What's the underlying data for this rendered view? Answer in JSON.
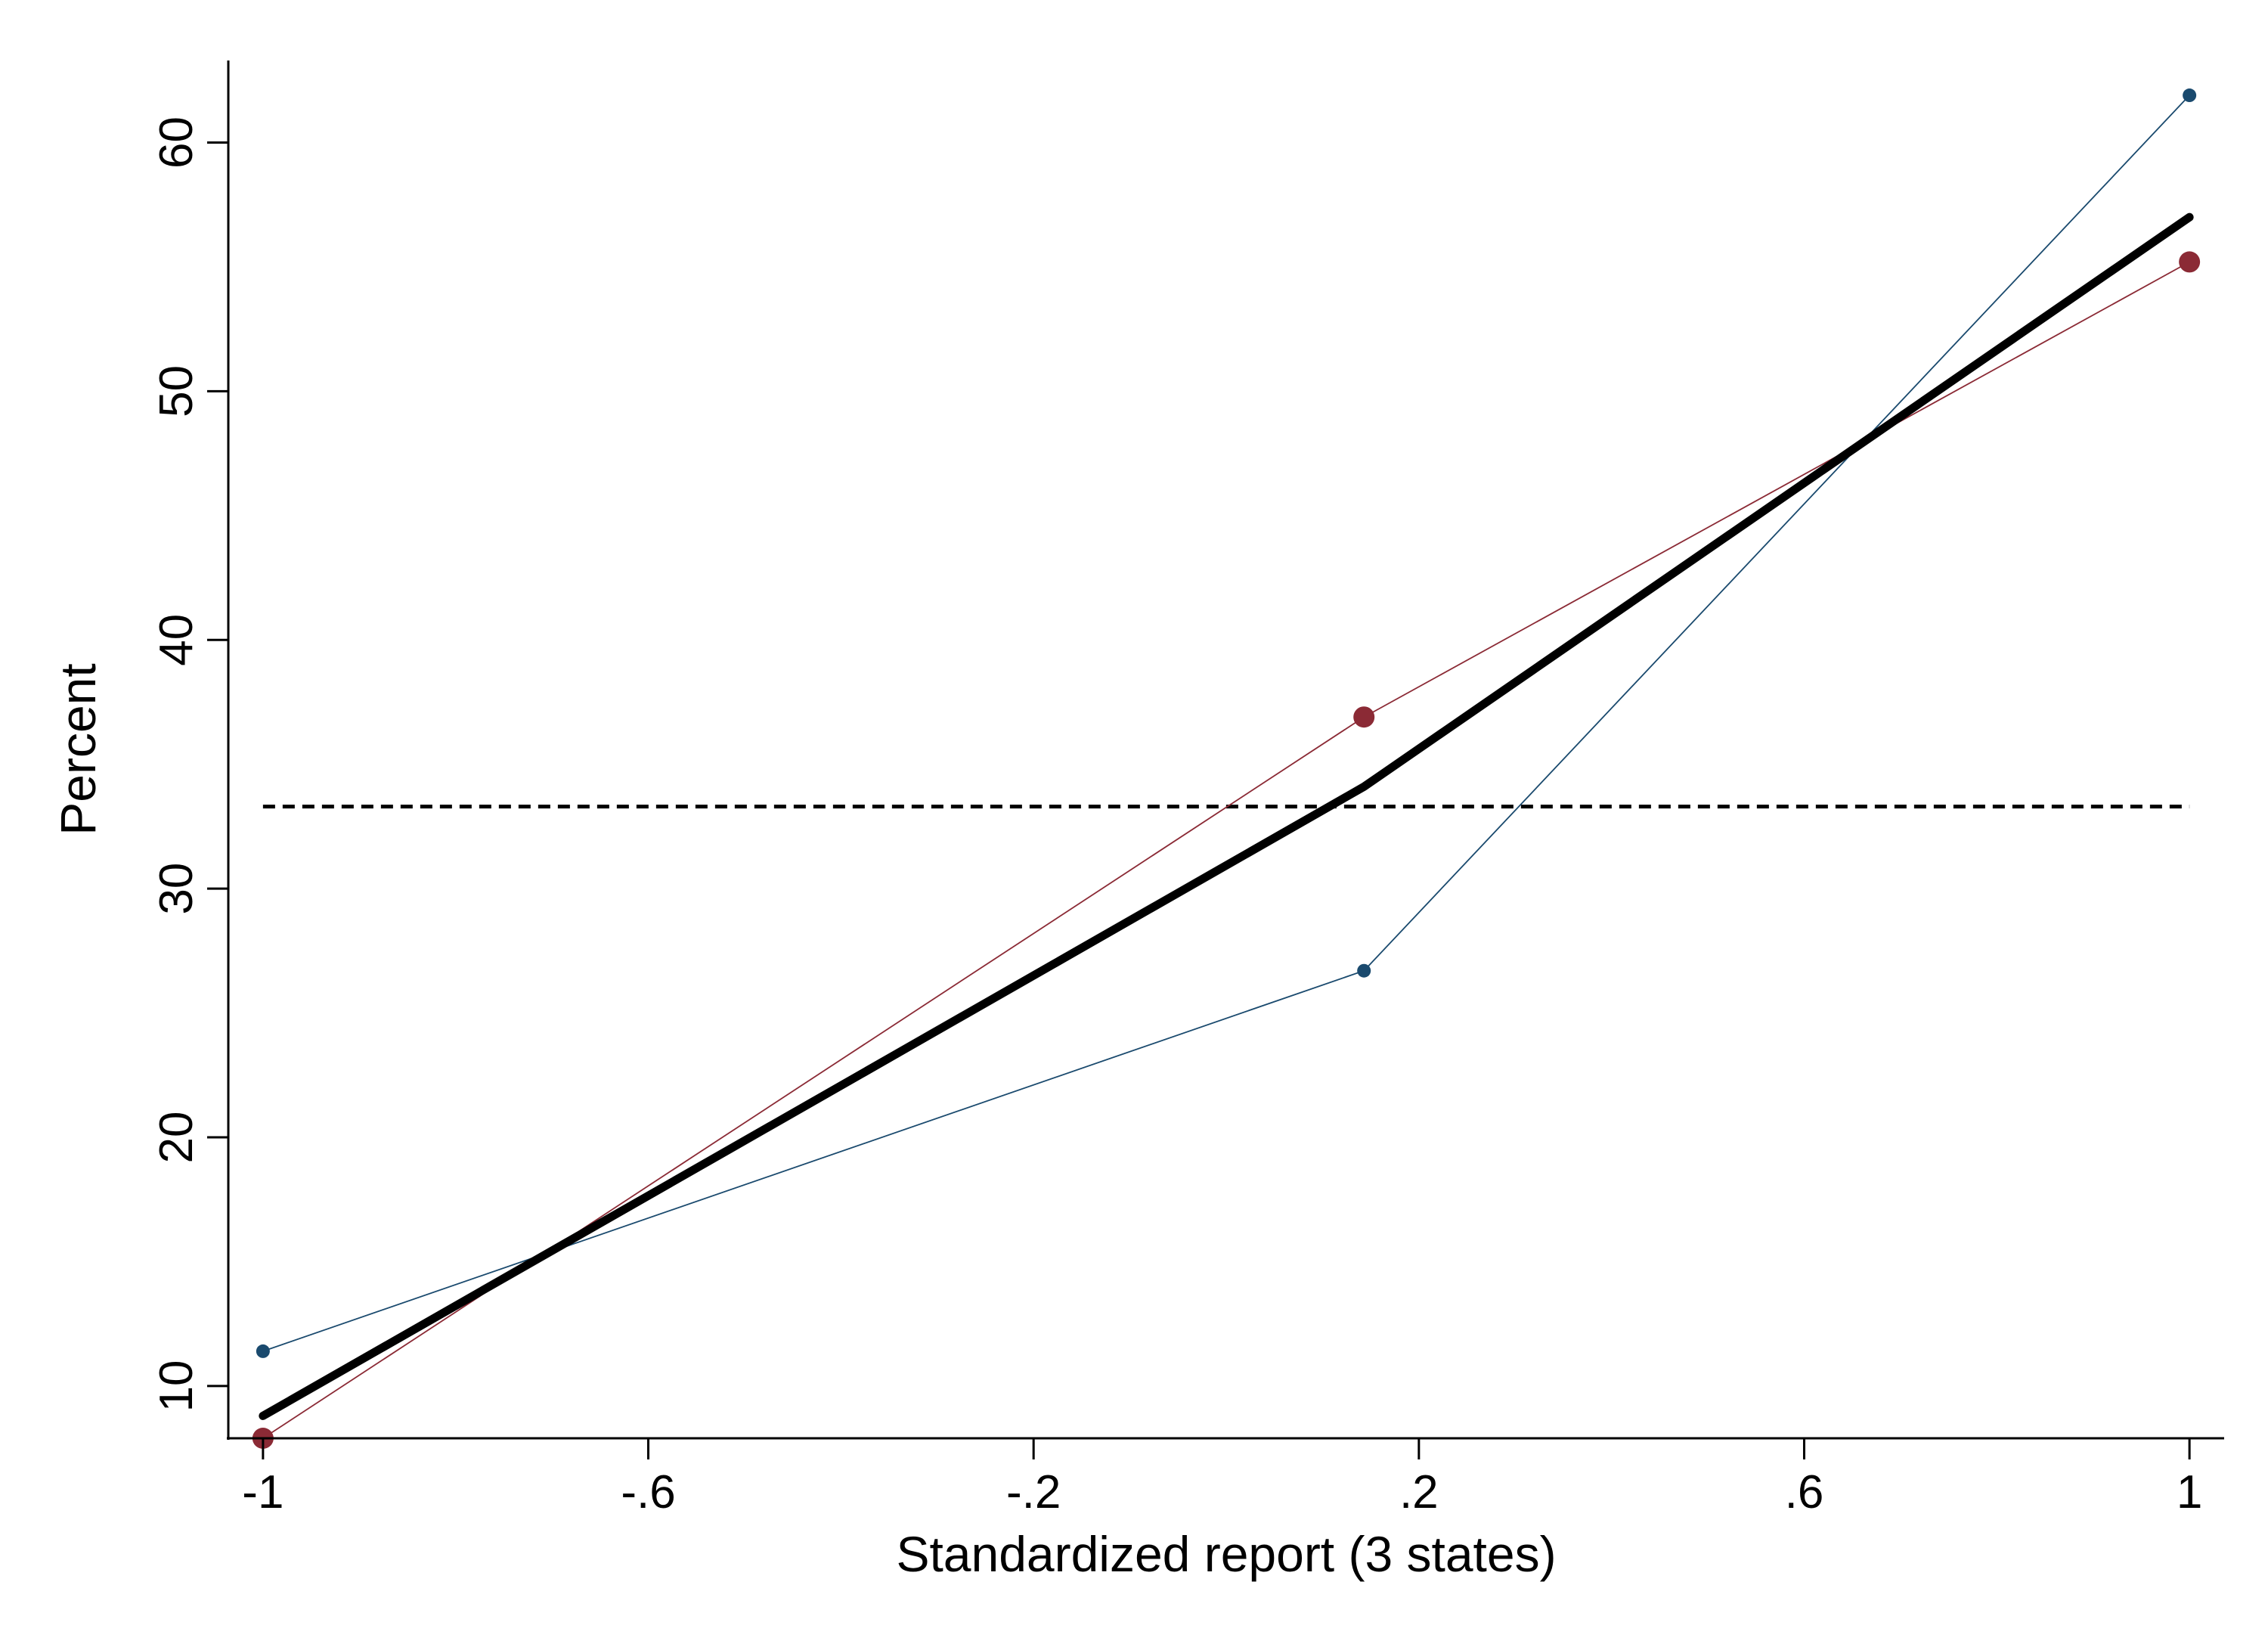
{
  "chart_data": {
    "type": "line",
    "title": "",
    "xlabel": "Standardized report (3 states)",
    "ylabel": "Percent",
    "xlim": [
      -1.036,
      1.036
    ],
    "ylim": [
      7.9,
      63.3
    ],
    "x_ticks": [
      -1,
      -0.6,
      -0.2,
      0.2,
      0.6,
      1
    ],
    "x_tick_labels": [
      "-1",
      "-.6",
      "-.2",
      ".2",
      ".6",
      "1"
    ],
    "y_ticks": [
      10,
      20,
      30,
      40,
      50,
      60
    ],
    "y_tick_labels": [
      "10",
      "20",
      "30",
      "40",
      "50",
      "60"
    ],
    "grid": false,
    "legend": "none",
    "series": [
      {
        "color": "#1a4a6e",
        "style": "thin line with small markers",
        "x": [
          -1,
          0.143,
          1
        ],
        "y": [
          11.4,
          26.7,
          61.9
        ]
      },
      {
        "color": "#8b2a35",
        "style": "thin line with large markers",
        "x": [
          -1,
          0.143,
          1
        ],
        "y": [
          7.9,
          36.9,
          55.2
        ]
      },
      {
        "color": "#000000",
        "style": "thick line, no markers",
        "x": [
          -1,
          0.143,
          1
        ],
        "y": [
          8.8,
          34.1,
          57.0
        ]
      }
    ],
    "reference_lines": [
      {
        "orientation": "horizontal",
        "y": 33.3,
        "style": "dashed",
        "color": "#000000"
      }
    ]
  }
}
